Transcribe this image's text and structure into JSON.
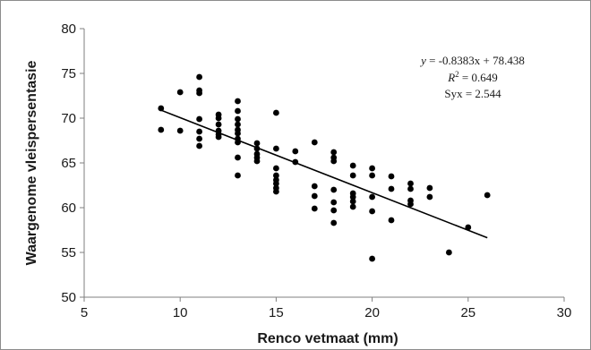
{
  "chart_data": {
    "type": "scatter",
    "title": "",
    "xlabel": "Renco vetmaat (mm)",
    "ylabel": "Waargenome vleispersentasie",
    "xlim": [
      5,
      30
    ],
    "ylim": [
      50,
      80
    ],
    "xticks": [
      "5",
      "10",
      "15",
      "20",
      "25",
      "30"
    ],
    "yticks": [
      "50",
      "55",
      "60",
      "65",
      "70",
      "75",
      "80"
    ],
    "grid": false,
    "annotations": {
      "equation_var": "y",
      "equation_rest": " = -0.8383x + 78.438",
      "r2_var": "R",
      "r2_sup": "2",
      "r2_rest": " = 0.649",
      "syx": "Syx = 2.544"
    },
    "trendline": {
      "slope": -0.8383,
      "intercept": 78.438,
      "x_start": 9,
      "x_end": 26
    },
    "points": [
      [
        9,
        71.1
      ],
      [
        9,
        68.7
      ],
      [
        10,
        72.9
      ],
      [
        10,
        68.6
      ],
      [
        11,
        74.6
      ],
      [
        11,
        73.1
      ],
      [
        11,
        72.8
      ],
      [
        11,
        69.9
      ],
      [
        11,
        68.5
      ],
      [
        11,
        67.7
      ],
      [
        11,
        66.9
      ],
      [
        12,
        70.4
      ],
      [
        12,
        70.0
      ],
      [
        12,
        69.3
      ],
      [
        12,
        68.6
      ],
      [
        12,
        68.2
      ],
      [
        12,
        67.9
      ],
      [
        13,
        71.9
      ],
      [
        13,
        70.8
      ],
      [
        13,
        69.9
      ],
      [
        13,
        69.3
      ],
      [
        13,
        68.7
      ],
      [
        13,
        68.3
      ],
      [
        13,
        67.7
      ],
      [
        13,
        67.3
      ],
      [
        13,
        65.6
      ],
      [
        13,
        63.6
      ],
      [
        14,
        67.2
      ],
      [
        14,
        66.6
      ],
      [
        14,
        66.0
      ],
      [
        14,
        65.6
      ],
      [
        14,
        65.2
      ],
      [
        15,
        70.6
      ],
      [
        15,
        66.6
      ],
      [
        15,
        64.4
      ],
      [
        15,
        63.6
      ],
      [
        15,
        63.1
      ],
      [
        15,
        62.7
      ],
      [
        15,
        62.2
      ],
      [
        15,
        61.8
      ],
      [
        16,
        66.3
      ],
      [
        16,
        65.1
      ],
      [
        17,
        67.3
      ],
      [
        17,
        62.4
      ],
      [
        17,
        61.3
      ],
      [
        17,
        59.9
      ],
      [
        18,
        66.2
      ],
      [
        18,
        65.6
      ],
      [
        18,
        65.2
      ],
      [
        18,
        62.0
      ],
      [
        18,
        60.6
      ],
      [
        18,
        59.7
      ],
      [
        18,
        58.3
      ],
      [
        19,
        64.7
      ],
      [
        19,
        63.6
      ],
      [
        19,
        61.6
      ],
      [
        19,
        61.2
      ],
      [
        19,
        60.7
      ],
      [
        19,
        60.1
      ],
      [
        20,
        64.4
      ],
      [
        20,
        63.6
      ],
      [
        20,
        61.2
      ],
      [
        20,
        59.6
      ],
      [
        20,
        54.3
      ],
      [
        21,
        63.5
      ],
      [
        21,
        62.1
      ],
      [
        21,
        58.6
      ],
      [
        22,
        62.7
      ],
      [
        22,
        62.1
      ],
      [
        22,
        60.8
      ],
      [
        22,
        60.4
      ],
      [
        23,
        62.2
      ],
      [
        23,
        61.2
      ],
      [
        24,
        55.0
      ],
      [
        25,
        57.8
      ],
      [
        26,
        61.4
      ]
    ]
  }
}
